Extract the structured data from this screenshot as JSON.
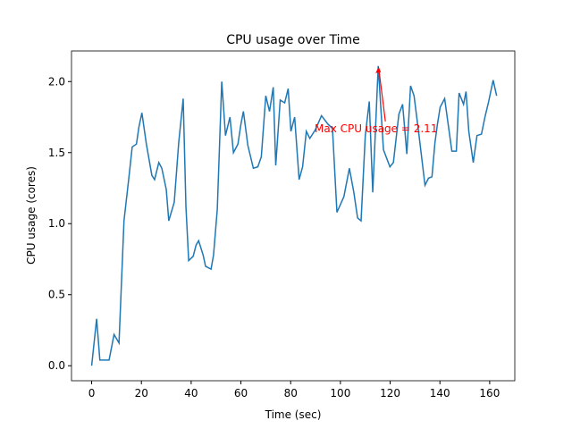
{
  "chart_data": {
    "type": "line",
    "title": "CPU usage over Time",
    "xlabel": "Time (sec)",
    "ylabel": "CPU usage (cores)",
    "x": [
      0,
      2,
      3.3,
      5,
      7,
      9,
      11,
      13,
      15,
      16.3,
      18,
      19,
      20.2,
      22,
      24.2,
      25.3,
      27,
      28.2,
      30,
      31,
      33.2,
      35,
      36.8,
      37.9,
      39,
      40.8,
      42,
      43,
      44.8,
      45.8,
      48,
      49,
      50.5,
      52.3,
      53.8,
      55.6,
      57,
      58.8,
      60,
      61,
      62.8,
      65,
      66.8,
      68.2,
      70,
      71.5,
      73,
      74,
      75.8,
      77.6,
      79,
      80.1,
      81.6,
      83.4,
      84.8,
      86.3,
      87.7,
      89.9,
      92.4,
      95,
      96.8,
      98.6,
      101.4,
      103.6,
      105.4,
      106.9,
      108.3,
      110,
      111.6,
      113,
      115.2,
      117.3,
      119.9,
      121.3,
      123.5,
      125,
      126.7,
      128.2,
      129.6,
      131.4,
      134,
      135.4,
      136.8,
      138,
      139,
      140.1,
      141.9,
      144.8,
      146.6,
      147.7,
      149.5,
      150.5,
      151.6,
      153.4,
      154.9,
      156.7,
      158.1,
      159.6,
      161.4,
      162.8
    ],
    "values": [
      0.0,
      0.33,
      0.04,
      0.04,
      0.04,
      0.22,
      0.16,
      1.02,
      1.33,
      1.54,
      1.56,
      1.68,
      1.78,
      1.56,
      1.34,
      1.31,
      1.43,
      1.39,
      1.24,
      1.02,
      1.15,
      1.57,
      1.88,
      1.12,
      0.74,
      0.77,
      0.85,
      0.88,
      0.78,
      0.7,
      0.68,
      0.78,
      1.1,
      2.0,
      1.62,
      1.75,
      1.5,
      1.56,
      1.7,
      1.79,
      1.55,
      1.39,
      1.4,
      1.47,
      1.9,
      1.79,
      1.96,
      1.41,
      1.87,
      1.85,
      1.95,
      1.65,
      1.75,
      1.31,
      1.4,
      1.65,
      1.6,
      1.66,
      1.76,
      1.7,
      1.67,
      1.08,
      1.19,
      1.39,
      1.22,
      1.04,
      1.02,
      1.62,
      1.86,
      1.22,
      2.11,
      1.52,
      1.4,
      1.43,
      1.77,
      1.84,
      1.49,
      1.97,
      1.9,
      1.65,
      1.27,
      1.32,
      1.33,
      1.57,
      1.7,
      1.82,
      1.88,
      1.51,
      1.51,
      1.92,
      1.84,
      1.93,
      1.65,
      1.43,
      1.62,
      1.63,
      1.75,
      1.86,
      2.01,
      1.9
    ],
    "color": "#1f77b4",
    "xlim": [
      -8.1,
      170.1
    ],
    "xticks": [
      0,
      20,
      40,
      60,
      80,
      100,
      120,
      140,
      160
    ],
    "ylim": [
      -0.1055,
      2.2155
    ],
    "yticks": [
      {
        "value": 0,
        "label": "0.0"
      },
      0.5,
      {
        "value": 1,
        "label": "1.0"
      },
      1.5,
      {
        "value": 2,
        "label": "2.0"
      }
    ],
    "annotation": {
      "text": "Max CPU usage = 2.11",
      "color": "#ff0000"
    }
  }
}
